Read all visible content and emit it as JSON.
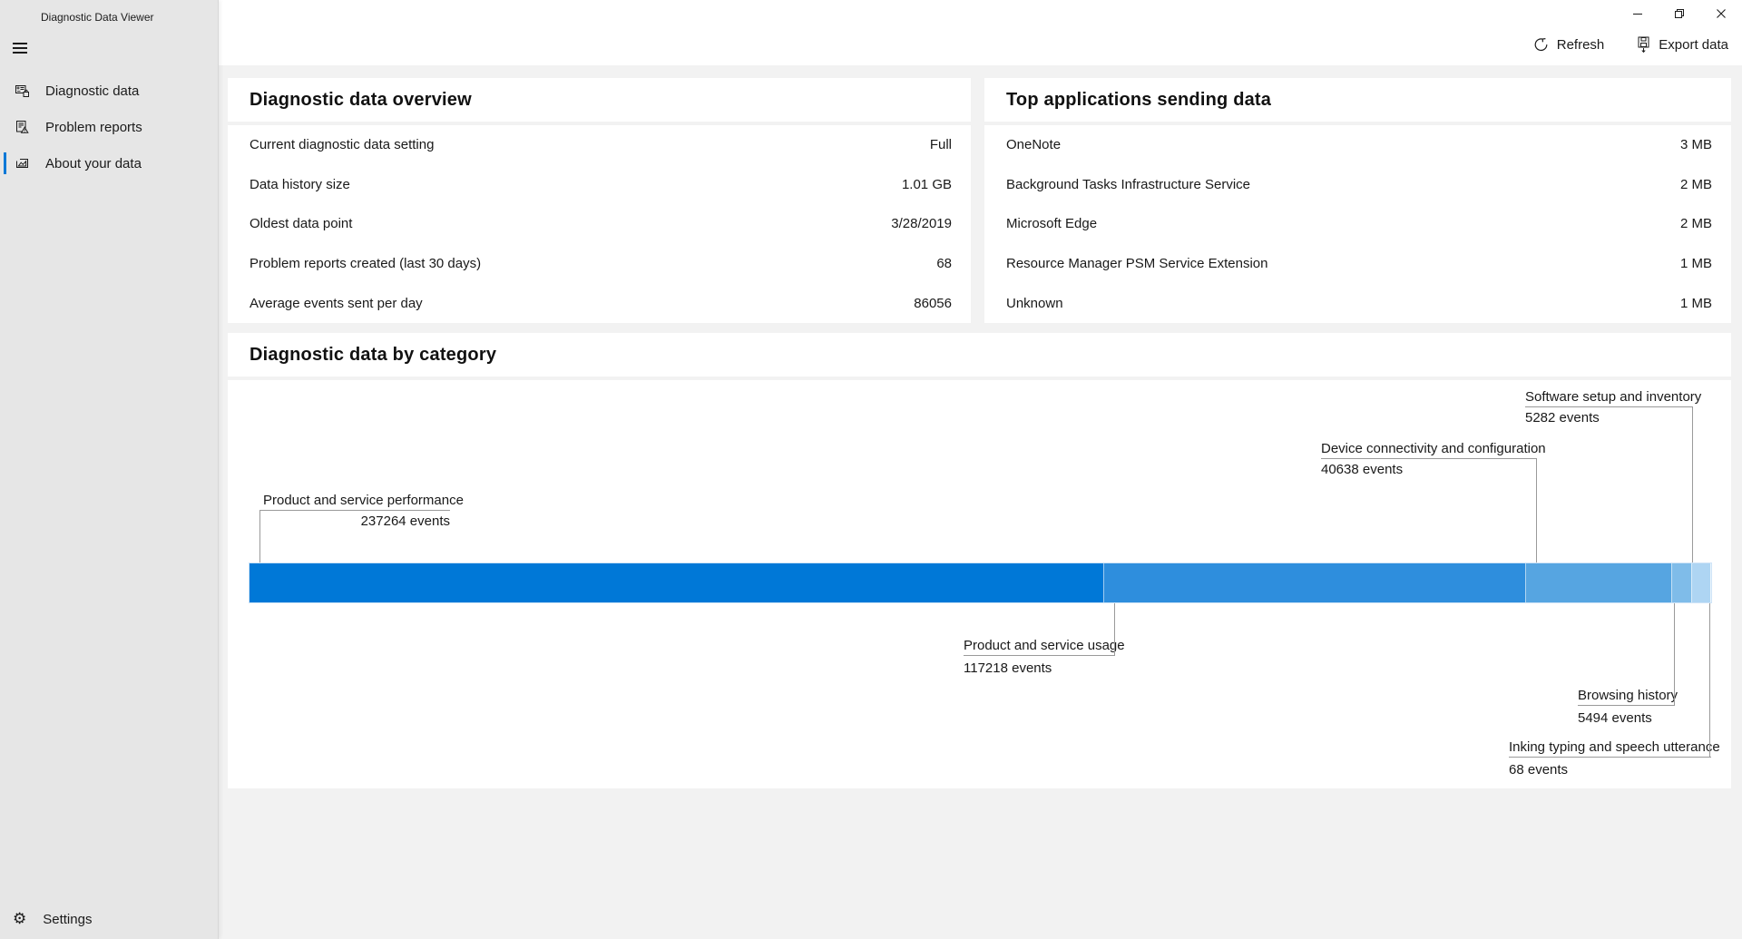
{
  "colors": {
    "accent": "#0078d7",
    "bar_border": "#cfe4f7",
    "callout_line": "#9a9a9a"
  },
  "sidebar": {
    "title": "Diagnostic Data Viewer",
    "items": [
      {
        "label": "Diagnostic data",
        "icon": "diagnostic-data-icon",
        "selected": false
      },
      {
        "label": "Problem reports",
        "icon": "problem-reports-icon",
        "selected": false
      },
      {
        "label": "About your data",
        "icon": "about-your-data-icon",
        "selected": true
      }
    ],
    "settings_label": "Settings"
  },
  "toolbar": {
    "refresh_label": "Refresh",
    "export_label": "Export data"
  },
  "window_controls": {
    "minimize": "minimize-icon",
    "restore": "restore-icon",
    "close": "close-icon"
  },
  "overview_card": {
    "title": "Diagnostic data overview",
    "rows": [
      {
        "label": "Current diagnostic data setting",
        "value": "Full"
      },
      {
        "label": "Data history size",
        "value": "1.01 GB"
      },
      {
        "label": "Oldest data point",
        "value": "3/28/2019"
      },
      {
        "label": "Problem reports created (last 30 days)",
        "value": "68"
      },
      {
        "label": "Average events sent per day",
        "value": "86056"
      }
    ]
  },
  "top_apps_card": {
    "title": "Top applications sending data",
    "rows": [
      {
        "label": "OneNote",
        "value": "3 MB"
      },
      {
        "label": "Background Tasks Infrastructure Service",
        "value": "2 MB"
      },
      {
        "label": "Microsoft Edge",
        "value": "2 MB"
      },
      {
        "label": "Resource Manager PSM Service Extension",
        "value": "1 MB"
      },
      {
        "label": "Unknown",
        "value": "1 MB"
      }
    ]
  },
  "category_card": {
    "title": "Diagnostic data by category"
  },
  "chart_data": {
    "type": "bar",
    "subtype": "single-stacked-horizontal",
    "title": "Diagnostic data by category",
    "unit": "events",
    "total_events": 405964,
    "segments": [
      {
        "label": "Product and service performance",
        "events": 237264,
        "events_label": "237264 events",
        "color": "#0078d7"
      },
      {
        "label": "Product and service usage",
        "events": 117218,
        "events_label": "117218 events",
        "color": "#2e8edd"
      },
      {
        "label": "Device connectivity and configuration",
        "events": 40638,
        "events_label": "40638 events",
        "color": "#56a5e1"
      },
      {
        "label": "Browsing history",
        "events": 5494,
        "events_label": "5494 events",
        "color": "#7fbce9"
      },
      {
        "label": "Software setup and inventory",
        "events": 5282,
        "events_label": "5282 events",
        "color": "#aed5f3"
      },
      {
        "label": "Inking typing and speech utterance",
        "events": 68,
        "events_label": "68 events",
        "color": "#d4e9f9"
      }
    ],
    "legend_position": "callouts",
    "axis": "none"
  }
}
